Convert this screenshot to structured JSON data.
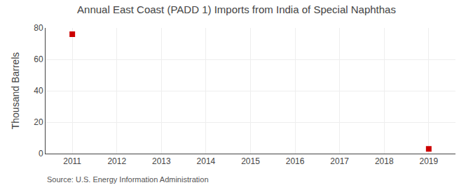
{
  "chart_data": {
    "type": "scatter",
    "title": "Annual East Coast (PADD 1) Imports from India of Special Naphthas",
    "ylabel": "Thousand Barrels",
    "annotations": [
      "Source: U.S. Energy Information Administration"
    ],
    "x": [
      2011,
      2019
    ],
    "values": [
      76,
      3
    ],
    "color": "#cc0000",
    "marker": "square",
    "xlim": [
      2010.4,
      2019.6
    ],
    "xticks": [
      2011,
      2012,
      2013,
      2014,
      2015,
      2016,
      2017,
      2018,
      2019
    ],
    "ylim": [
      0,
      80
    ],
    "yticks": [
      0,
      20,
      40,
      60,
      80
    ],
    "grid": true
  }
}
